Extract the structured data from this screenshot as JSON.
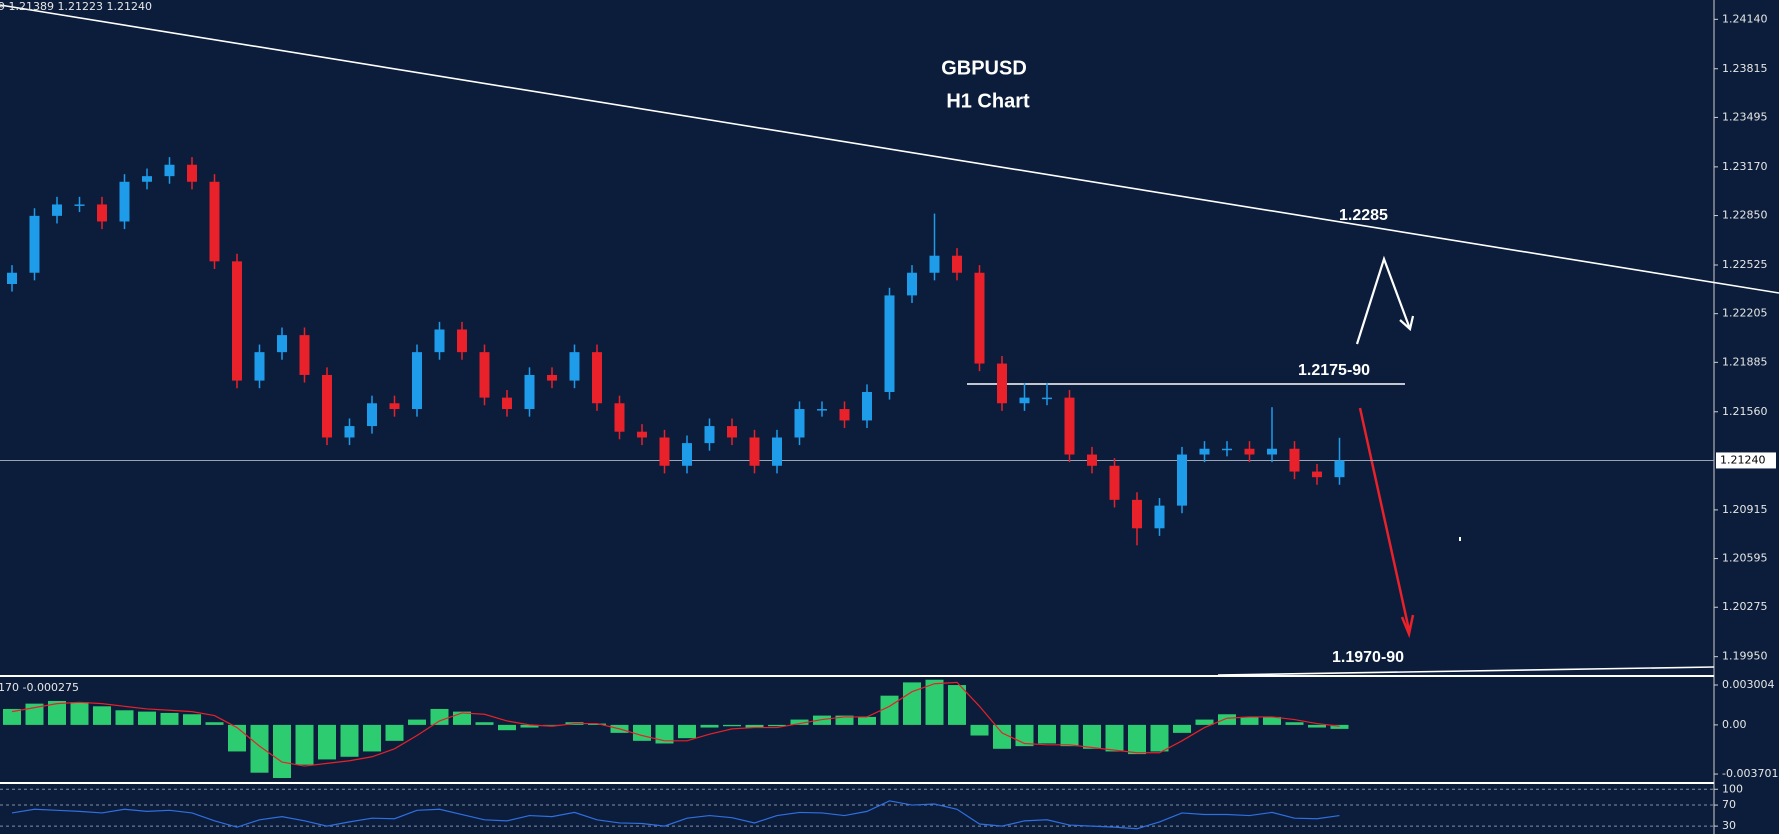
{
  "chart_data": [
    {
      "type": "candlestick",
      "title": "GBPUSD",
      "subtitle": "H1 Chart",
      "header": "9 1.21389 1.21223 1.21240",
      "annotations": [
        "1.2285",
        "1.2175-90",
        "1.1970-90"
      ],
      "last_price": {
        "value": 1.2124,
        "label": "1.21240"
      },
      "up_color": "#1e9be9",
      "down_color": "#e8212a",
      "ylim": [
        1.19823,
        1.24267
      ],
      "yticks": [
        {
          "value": 1.2414,
          "label": "1.24140"
        },
        1.23815,
        1.23495,
        {
          "value": 1.2317,
          "label": "1.23170"
        },
        {
          "value": 1.2285,
          "label": "1.22850"
        },
        1.22525,
        1.22205,
        1.21885,
        {
          "value": 1.2156,
          "label": "1.21560"
        },
        1.20915,
        1.20595,
        1.20275,
        {
          "value": 1.1995,
          "label": "1.19950"
        }
      ],
      "open": [
        1.224,
        1.22474,
        1.22848,
        1.22923,
        1.22923,
        1.22811,
        1.23072,
        1.23109,
        1.23184,
        1.23072,
        1.22549,
        1.21765,
        1.21952,
        1.22064,
        1.21802,
        1.21391,
        1.21466,
        1.21616,
        1.21578,
        1.21952,
        1.22101,
        1.21952,
        1.21653,
        1.21578,
        1.21802,
        1.21765,
        1.21952,
        1.21616,
        1.21429,
        1.21391,
        1.21205,
        1.21354,
        1.21466,
        1.21391,
        1.21205,
        1.21391,
        1.21578,
        1.21578,
        1.21503,
        1.2169,
        1.22325,
        1.22474,
        1.22586,
        1.22474,
        1.21877,
        1.21616,
        1.21653,
        1.21653,
        1.21279,
        1.21205,
        1.20981,
        1.20794,
        1.20943,
        1.21279,
        1.21317,
        1.21317,
        1.21279,
        1.21317,
        1.21167,
        1.2113
      ],
      "high": [
        1.22524,
        1.22898,
        1.22973,
        1.22973,
        1.22973,
        1.23122,
        1.23159,
        1.23234,
        1.23234,
        1.23122,
        1.22599,
        1.22002,
        1.22114,
        1.22114,
        1.21852,
        1.21516,
        1.21666,
        1.21666,
        1.22002,
        1.22151,
        1.22151,
        1.22002,
        1.21703,
        1.21852,
        1.21852,
        1.22002,
        1.22002,
        1.21666,
        1.21479,
        1.21441,
        1.21404,
        1.21516,
        1.21516,
        1.21441,
        1.21441,
        1.21628,
        1.21628,
        1.21628,
        1.2174,
        1.22375,
        1.22524,
        1.22863,
        1.22636,
        1.22524,
        1.21927,
        1.2175,
        1.2175,
        1.21703,
        1.21329,
        1.21255,
        1.21031,
        1.20993,
        1.21329,
        1.21367,
        1.21367,
        1.21367,
        1.2159,
        1.21367,
        1.21217,
        1.21389
      ],
      "low": [
        1.2235,
        1.22424,
        1.22798,
        1.22873,
        1.22761,
        1.22761,
        1.23022,
        1.23059,
        1.23022,
        1.22499,
        1.21715,
        1.21715,
        1.21902,
        1.21752,
        1.21341,
        1.21341,
        1.21416,
        1.21528,
        1.21528,
        1.21902,
        1.21902,
        1.21603,
        1.21528,
        1.21528,
        1.21715,
        1.21715,
        1.21566,
        1.21379,
        1.21341,
        1.21155,
        1.21155,
        1.21304,
        1.21341,
        1.21155,
        1.21155,
        1.21341,
        1.21528,
        1.21453,
        1.21453,
        1.2164,
        1.22275,
        1.22424,
        1.22424,
        1.21827,
        1.21566,
        1.21566,
        1.21603,
        1.21229,
        1.21155,
        1.20931,
        1.20682,
        1.20744,
        1.20893,
        1.21229,
        1.21267,
        1.21229,
        1.21229,
        1.21117,
        1.2108,
        1.2108
      ],
      "close": [
        1.22474,
        1.22848,
        1.22923,
        1.22923,
        1.22811,
        1.23072,
        1.23109,
        1.23184,
        1.23072,
        1.22549,
        1.21765,
        1.21952,
        1.22064,
        1.21802,
        1.21391,
        1.21466,
        1.21616,
        1.21578,
        1.21952,
        1.22101,
        1.21952,
        1.21653,
        1.21578,
        1.21802,
        1.21765,
        1.21952,
        1.21616,
        1.21429,
        1.21391,
        1.21205,
        1.21354,
        1.21466,
        1.21391,
        1.21205,
        1.21391,
        1.21578,
        1.21578,
        1.21503,
        1.2169,
        1.22325,
        1.22474,
        1.22586,
        1.22474,
        1.21877,
        1.21616,
        1.21653,
        1.21653,
        1.21279,
        1.21205,
        1.20981,
        1.20794,
        1.20943,
        1.21279,
        1.21317,
        1.21317,
        1.21279,
        1.21317,
        1.21167,
        1.2113,
        1.2124
      ]
    },
    {
      "type": "macd",
      "header": "170 -0.000275",
      "ylim": [
        -0.0043,
        0.003606
      ],
      "yticks": [
        0.003004,
        {
          "value": 0,
          "label": "0.00"
        },
        -0.003701
      ],
      "series": [
        {
          "color": "#2ecc71",
          "values": [
            0.0012,
            0.0016,
            0.0018,
            0.0017,
            0.0014,
            0.0011,
            0.001,
            0.0009,
            0.0008,
            0.0002,
            -0.002,
            -0.0036,
            -0.004,
            -0.003,
            -0.0026,
            -0.0024,
            -0.002,
            -0.0012,
            0.0004,
            0.0012,
            0.001,
            0.0002,
            -0.0004,
            -0.0002,
            0,
            0.0002,
            0.0001,
            -0.0006,
            -0.0012,
            -0.0014,
            -0.001,
            -0.0002,
            -0.0001,
            -0.0002,
            -0.0001,
            0.0004,
            0.0007,
            0.0007,
            0.0006,
            0.0022,
            0.0032,
            0.0034,
            0.003,
            -0.0008,
            -0.0018,
            -0.0016,
            -0.0014,
            -0.0016,
            -0.0018,
            -0.002,
            -0.0022,
            -0.002,
            -0.0006,
            0.0004,
            0.0008,
            0.0006,
            0.0006,
            0.0002,
            -0.0002,
            -0.0003
          ]
        },
        {
          "color": "#e8212a",
          "values": [
            0.001,
            0.0013,
            0.0016,
            0.0017,
            0.0016,
            0.0014,
            0.0012,
            0.0011,
            0.001,
            0.0007,
            -0.0002,
            -0.0016,
            -0.0028,
            -0.0031,
            -0.0029,
            -0.0027,
            -0.0024,
            -0.0018,
            -0.0008,
            0.0003,
            0.0009,
            0.0008,
            0.0003,
            0,
            -0.0001,
            0.0001,
            0.0001,
            -0.0003,
            -0.0008,
            -0.0012,
            -0.0012,
            -0.0007,
            -0.0003,
            -0.0002,
            -0.0002,
            0.0001,
            0.0004,
            0.0006,
            0.0006,
            0.0014,
            0.0025,
            0.0031,
            0.0032,
            0.0014,
            -0.0006,
            -0.0014,
            -0.0015,
            -0.0015,
            -0.0017,
            -0.0019,
            -0.0021,
            -0.0021,
            -0.0012,
            -0.0002,
            0.0005,
            0.0006,
            0.0006,
            0.0004,
            0.0001,
            -0.0001
          ]
        }
      ]
    },
    {
      "type": "line",
      "ylim": [
        15,
        110
      ],
      "yticks": [
        100,
        70,
        30
      ],
      "color": "#2f6fe0",
      "values": [
        55,
        62,
        60,
        58,
        55,
        62,
        58,
        60,
        55,
        40,
        28,
        42,
        48,
        40,
        30,
        38,
        45,
        44,
        60,
        62,
        52,
        42,
        40,
        50,
        48,
        56,
        42,
        36,
        35,
        30,
        45,
        50,
        46,
        36,
        50,
        56,
        55,
        50,
        58,
        78,
        70,
        72,
        62,
        34,
        30,
        40,
        42,
        32,
        30,
        28,
        25,
        38,
        55,
        52,
        52,
        50,
        56,
        45,
        44,
        50
      ]
    }
  ]
}
